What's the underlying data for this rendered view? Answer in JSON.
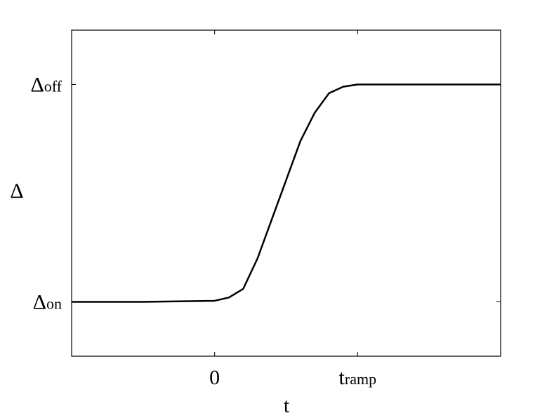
{
  "chart_data": {
    "type": "line",
    "xlabel": "t",
    "ylabel": "Δ",
    "x": [
      -1,
      -0.5,
      0,
      0.1,
      0.2,
      0.3,
      0.4,
      0.5,
      0.6,
      0.7,
      0.8,
      0.9,
      1,
      1.5,
      2
    ],
    "series": [
      {
        "color": "#000000",
        "values": [
          0,
          0,
          0.005,
          0.02,
          0.06,
          0.2,
          0.38,
          0.56,
          0.74,
          0.87,
          0.96,
          0.99,
          1,
          1,
          1
        ]
      }
    ],
    "xlim": [
      -1,
      2
    ],
    "ylim": [
      -0.25,
      1.25
    ],
    "xticks": [
      0,
      {
        "value": 1,
        "label": "t",
        "subscript": "ramp"
      }
    ],
    "yticks": [
      {
        "value": 0,
        "label": "Δ",
        "subscript": "on"
      },
      {
        "value": 1,
        "label": "Δ",
        "subscript": "off"
      }
    ]
  }
}
